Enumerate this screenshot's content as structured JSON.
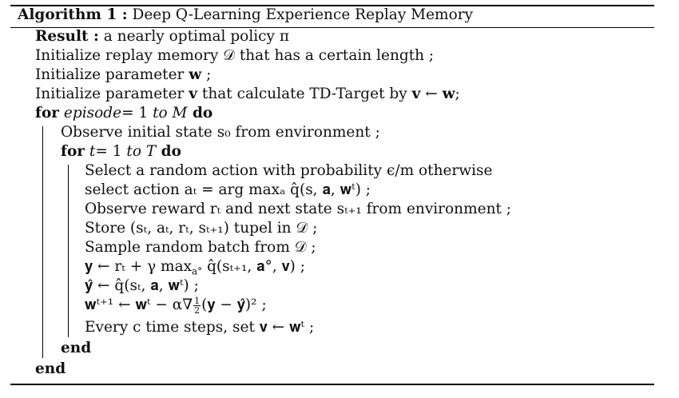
{
  "algorithm": {
    "label": "Algorithm 1 :",
    "title": "Deep Q-Learning  Experience Replay Memory"
  },
  "lines": {
    "result_kw": "Result :",
    "result_text": " a nearly optimal policy π",
    "init_memory": "Initialize replay memory 𝒟 that has a certain length ;",
    "init_w_pre": "Initialize parameter ",
    "init_w_var": "w",
    "init_w_post": " ;",
    "init_v_pre": "Initialize parameter ",
    "init_v_var": "v",
    "init_v_mid": " that calculate TD-Target by ",
    "init_v_expr_a": "v",
    "init_v_arrow": " ← ",
    "init_v_expr_b": "w",
    "init_v_end": ";",
    "for_episode_kw": "for",
    "for_episode_var": " episode",
    "for_episode_eq": "= 1 ",
    "for_episode_to": "to M",
    "for_episode_do": " do",
    "observe_initial": "Observe initial state s₀ from environment ;",
    "for_t_kw": "for",
    "for_t_var": " t",
    "for_t_eq": "= 1 ",
    "for_t_to": "to T",
    "for_t_do": " do",
    "select_random": "Select a random action with probability ϵ/m otherwise",
    "select_action": "select action aₜ = arg maxₐ q̂(s, 𝐚, 𝐰ᵗ) ;",
    "observe_reward": "Observe reward rₜ and next state sₜ₊₁ from environment ;",
    "store": "Store (sₜ, aₜ, rₜ, sₜ₊₁) tupel in 𝒟 ;",
    "sample": "Sample random batch from 𝒟 ;",
    "y_update": "𝐲 ← rₜ + γ max",
    "y_update_sub": "a°",
    "y_update_rest": " q̂(sₜ₊₁, 𝐚°, 𝐯) ;",
    "yhat_update": "𝐲̂ ← q̂(sₜ, 𝐚, 𝐰ᵗ) ;",
    "w_update_pre": "𝐰ᵗ⁺¹ ← 𝐰ᵗ − α∇",
    "w_update_num": "1",
    "w_update_den": "2",
    "w_update_post": "(𝐲 − 𝐲̂)² ;",
    "every_c": "Every c time steps, set 𝐯 ← 𝐰ᵗ ;",
    "end_inner": "end",
    "end_outer": "end"
  }
}
